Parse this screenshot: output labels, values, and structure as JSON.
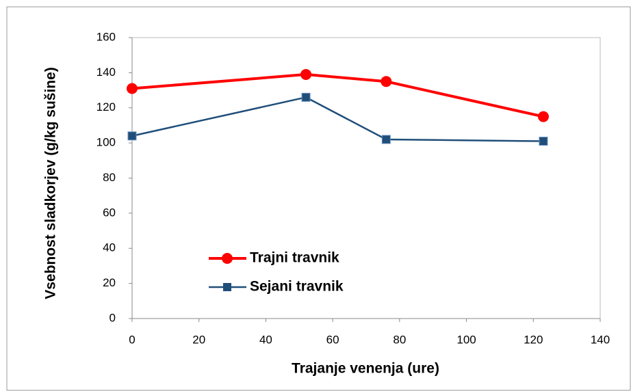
{
  "chart_data": {
    "type": "line",
    "x_label": "Trajanje venenja (ure)",
    "y_label": "Vsebnost sladkorjev (g/kg sušine)",
    "xlim": [
      0,
      140
    ],
    "xticks": [
      0,
      20,
      40,
      60,
      80,
      100,
      120,
      140
    ],
    "ylim": [
      0,
      160
    ],
    "yticks": [
      0,
      20,
      40,
      60,
      80,
      100,
      120,
      140,
      160
    ],
    "legend": "center-left",
    "series": [
      {
        "name": "Trajni travnik",
        "color": "#ff0000",
        "marker": "circle",
        "x": [
          0,
          52,
          76,
          123
        ],
        "values": [
          131,
          139,
          135,
          115
        ]
      },
      {
        "name": "Sejani travnik",
        "color": "#1f4e79",
        "marker": "square",
        "x": [
          0,
          52,
          76,
          123
        ],
        "values": [
          104,
          126,
          102,
          101
        ]
      }
    ]
  }
}
